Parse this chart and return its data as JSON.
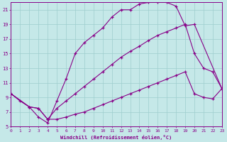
{
  "xlabel": "Windchill (Refroidissement éolien,°C)",
  "xlim": [
    0,
    23
  ],
  "ylim": [
    5,
    22
  ],
  "xticks": [
    0,
    1,
    2,
    3,
    4,
    5,
    6,
    7,
    8,
    9,
    10,
    11,
    12,
    13,
    14,
    15,
    16,
    17,
    18,
    19,
    20,
    21,
    22,
    23
  ],
  "yticks": [
    5,
    7,
    9,
    11,
    13,
    15,
    17,
    19,
    21
  ],
  "background_color": "#c5e8e8",
  "line_color": "#880088",
  "grid_color": "#9ecece",
  "curve1_x": [
    0,
    1,
    2,
    3,
    4,
    5,
    6,
    7,
    8,
    9,
    10,
    11,
    12,
    13,
    14,
    15,
    16,
    17,
    18,
    19,
    20,
    23
  ],
  "curve1_y": [
    9.5,
    8.5,
    7.7,
    6.3,
    5.5,
    8.5,
    11.5,
    15.0,
    16.5,
    17.5,
    18.5,
    20.0,
    21.0,
    21.0,
    21.8,
    22.0,
    22.0,
    22.0,
    21.5,
    18.8,
    19.0,
    10.2
  ],
  "curve2_x": [
    0,
    2,
    3,
    4,
    5,
    6,
    7,
    8,
    9,
    10,
    11,
    12,
    13,
    14,
    15,
    16,
    17,
    18,
    19,
    20,
    21,
    22,
    23
  ],
  "curve2_y": [
    9.5,
    7.7,
    7.5,
    6.0,
    7.5,
    8.5,
    9.5,
    10.5,
    11.5,
    12.5,
    13.5,
    14.5,
    15.3,
    16.0,
    16.8,
    17.5,
    18.0,
    18.5,
    19.0,
    15.0,
    13.0,
    12.5,
    10.2
  ],
  "curve3_x": [
    0,
    2,
    3,
    4,
    5,
    6,
    7,
    8,
    9,
    10,
    11,
    12,
    13,
    14,
    15,
    16,
    17,
    18,
    19,
    20,
    21,
    22,
    23
  ],
  "curve3_y": [
    9.5,
    7.7,
    7.5,
    6.0,
    6.0,
    6.3,
    6.7,
    7.0,
    7.5,
    8.0,
    8.5,
    9.0,
    9.5,
    10.0,
    10.5,
    11.0,
    11.5,
    12.0,
    12.5,
    9.5,
    9.0,
    8.8,
    10.2
  ]
}
